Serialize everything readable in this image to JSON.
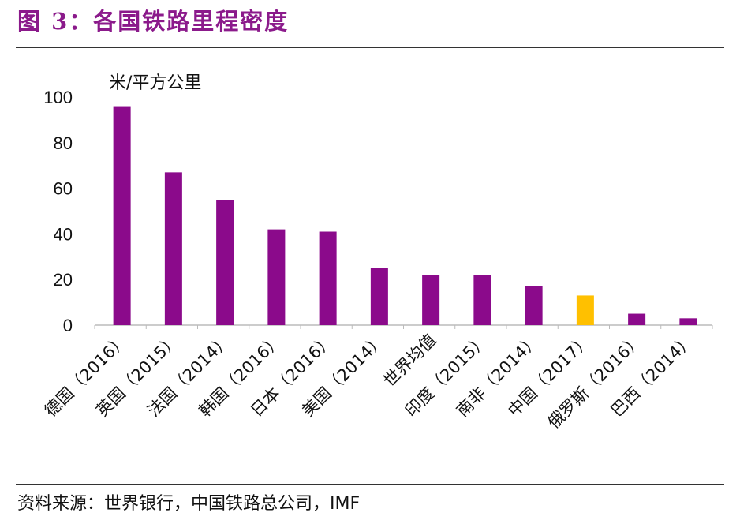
{
  "title": "图 3：各国铁路里程密度",
  "source": "资料来源：世界银行，中国铁路总公司，IMF",
  "chart_data": {
    "type": "bar",
    "title": "",
    "ylabel": "米/平方公里",
    "xlabel": "",
    "ylim": [
      0,
      100
    ],
    "yticks": [
      0,
      20,
      40,
      60,
      80,
      100
    ],
    "grid": false,
    "categories": [
      "德国（2016）",
      "英国（2015）",
      "法国（2014）",
      "韩国（2016）",
      "日本（2016）",
      "美国（2014）",
      "世界均值",
      "印度（2015）",
      "南非（2014）",
      "中国（2017）",
      "俄罗斯（2016）",
      "巴西（2014）"
    ],
    "values": [
      96,
      67,
      55,
      42,
      41,
      25,
      22,
      22,
      17,
      13,
      5,
      3
    ],
    "colors": {
      "default": "#8B0A8B",
      "highlight": "#FFC000"
    },
    "highlight": "中国（2017）"
  }
}
